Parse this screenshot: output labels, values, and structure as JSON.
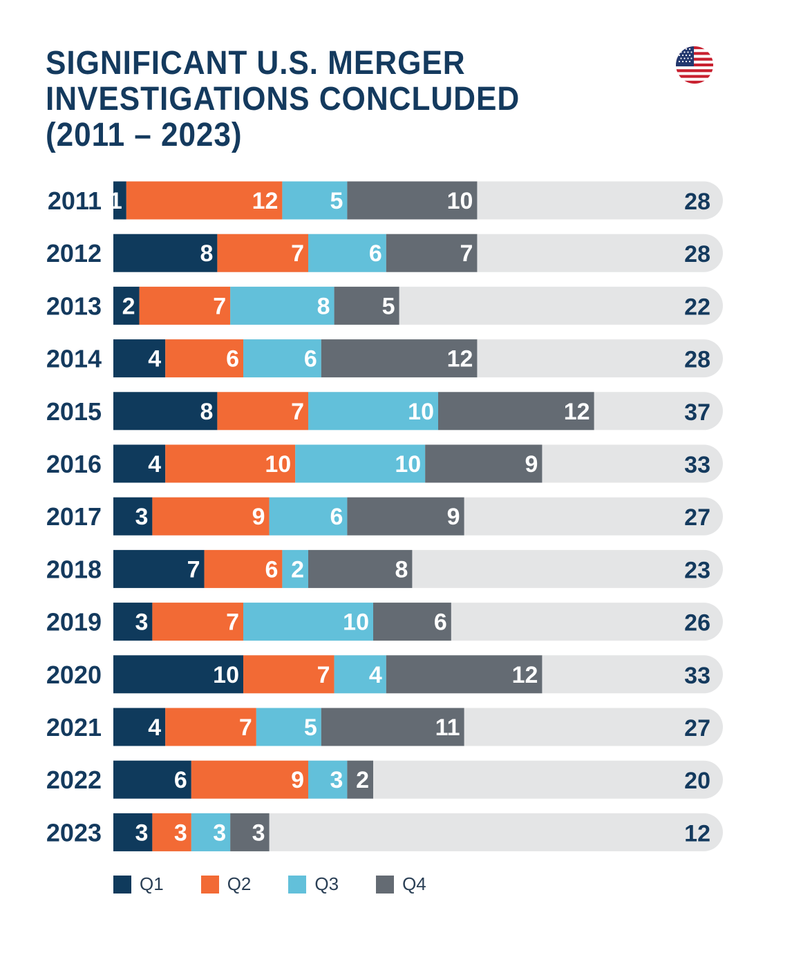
{
  "title_lines": [
    "SIGNIFICANT U.S. MERGER",
    "INVESTIGATIONS CONCLUDED",
    "(2011 – 2023)"
  ],
  "flag_icon": "us-flag-icon",
  "colors": {
    "title": "#143a5e",
    "q1": "#0f3a5c",
    "q2": "#f26a35",
    "q3": "#62c0da",
    "q4": "#646b73",
    "track": "#e4e5e6",
    "year_label": "#143a5e",
    "total_label": "#143a5e"
  },
  "chart_data": {
    "type": "bar",
    "orientation": "horizontal",
    "stacked": true,
    "title": "SIGNIFICANT U.S. MERGER INVESTIGATIONS CONCLUDED (2011 – 2023)",
    "categories": [
      "2011",
      "2012",
      "2013",
      "2014",
      "2015",
      "2016",
      "2017",
      "2018",
      "2019",
      "2020",
      "2021",
      "2022",
      "2023"
    ],
    "series": [
      {
        "name": "Q1",
        "values": [
          1,
          8,
          2,
          4,
          8,
          4,
          3,
          7,
          3,
          10,
          4,
          6,
          3
        ]
      },
      {
        "name": "Q2",
        "values": [
          12,
          7,
          7,
          6,
          7,
          10,
          9,
          6,
          7,
          7,
          7,
          9,
          3
        ]
      },
      {
        "name": "Q3",
        "values": [
          5,
          6,
          8,
          6,
          10,
          10,
          6,
          2,
          10,
          4,
          5,
          3,
          3
        ]
      },
      {
        "name": "Q4",
        "values": [
          10,
          7,
          5,
          12,
          12,
          9,
          9,
          8,
          6,
          12,
          11,
          2,
          3
        ]
      }
    ],
    "totals": [
      "28",
      "28",
      "22",
      "28",
      "37",
      "33",
      "27",
      "23",
      "26",
      "33",
      "27",
      "20",
      "12"
    ],
    "xlim": [
      0,
      47
    ],
    "legend_position": "bottom-left",
    "grid": false
  }
}
